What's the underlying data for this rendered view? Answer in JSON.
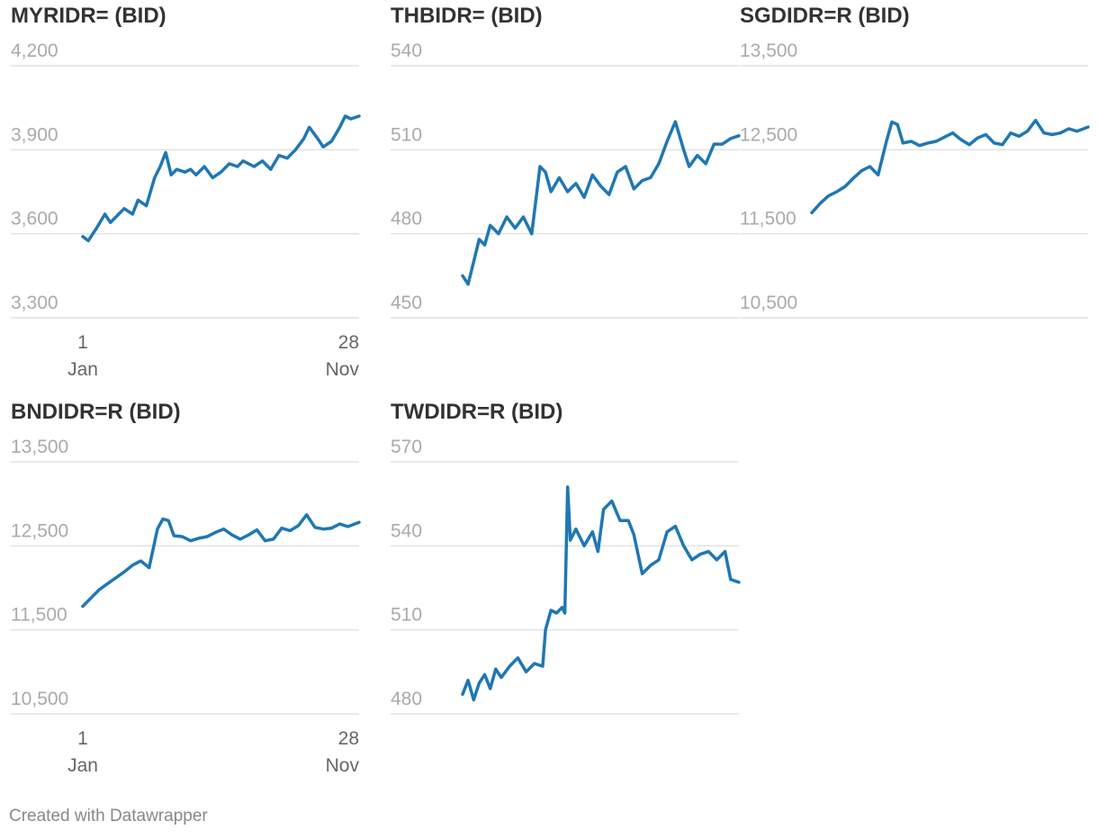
{
  "chart_data": [
    {
      "type": "line",
      "title": "MYRIDR= (BID)",
      "yticks": [
        3300,
        3600,
        3900,
        4200
      ],
      "ytick_labels": [
        "3,300",
        "3,600",
        "3,900",
        "4,200"
      ],
      "ylim": [
        3300,
        4200
      ],
      "x_start_label": [
        "1",
        "Jan"
      ],
      "x_end_label": [
        "28",
        "Nov"
      ],
      "show_x_labels": true,
      "xlim": [
        0,
        1
      ],
      "color": "#1f77b4",
      "series": [
        {
          "x": [
            0,
            0.02,
            0.05,
            0.08,
            0.1,
            0.12,
            0.15,
            0.18,
            0.2,
            0.23,
            0.26,
            0.28,
            0.3,
            0.32,
            0.34,
            0.37,
            0.39,
            0.41,
            0.44,
            0.47,
            0.5,
            0.53,
            0.56,
            0.58,
            0.62,
            0.65,
            0.68,
            0.71,
            0.74,
            0.77,
            0.8,
            0.82,
            0.85,
            0.87,
            0.9,
            0.93,
            0.95,
            0.97,
            1.0
          ],
          "y": [
            3590,
            3575,
            3620,
            3670,
            3640,
            3660,
            3690,
            3670,
            3720,
            3700,
            3800,
            3840,
            3890,
            3810,
            3830,
            3820,
            3830,
            3810,
            3840,
            3800,
            3820,
            3850,
            3840,
            3860,
            3840,
            3860,
            3830,
            3880,
            3870,
            3900,
            3940,
            3980,
            3940,
            3910,
            3930,
            3980,
            4020,
            4010,
            4020
          ]
        }
      ]
    },
    {
      "type": "line",
      "title": "THBIDR= (BID)",
      "yticks": [
        450,
        480,
        510,
        540
      ],
      "ytick_labels": [
        "450",
        "480",
        "510",
        "540"
      ],
      "ylim": [
        450,
        540
      ],
      "show_x_labels": false,
      "xlim": [
        0,
        1
      ],
      "color": "#1f77b4",
      "series": [
        {
          "x": [
            0,
            0.02,
            0.04,
            0.06,
            0.08,
            0.1,
            0.13,
            0.16,
            0.19,
            0.22,
            0.25,
            0.28,
            0.3,
            0.32,
            0.35,
            0.38,
            0.41,
            0.44,
            0.47,
            0.5,
            0.53,
            0.56,
            0.59,
            0.62,
            0.65,
            0.68,
            0.71,
            0.74,
            0.77,
            0.8,
            0.82,
            0.85,
            0.88,
            0.91,
            0.94,
            0.97,
            1.0
          ],
          "y": [
            465,
            462,
            470,
            478,
            476,
            483,
            480,
            486,
            482,
            486,
            480,
            504,
            502,
            495,
            500,
            495,
            498,
            493,
            501,
            497,
            494,
            502,
            504,
            496,
            499,
            500,
            505,
            513,
            520,
            510,
            504,
            508,
            505,
            512,
            512,
            514,
            515
          ]
        }
      ]
    },
    {
      "type": "line",
      "title": "SGDIDR=R (BID)",
      "yticks": [
        10500,
        11500,
        12500,
        13500
      ],
      "ytick_labels": [
        "10,500",
        "11,500",
        "12,500",
        "13,500"
      ],
      "ylim": [
        10500,
        13500
      ],
      "show_x_labels": false,
      "xlim": [
        0,
        1
      ],
      "color": "#1f77b4",
      "series": [
        {
          "x": [
            0,
            0.03,
            0.06,
            0.09,
            0.12,
            0.15,
            0.18,
            0.21,
            0.24,
            0.27,
            0.29,
            0.31,
            0.33,
            0.36,
            0.39,
            0.42,
            0.45,
            0.48,
            0.51,
            0.54,
            0.57,
            0.6,
            0.63,
            0.66,
            0.69,
            0.72,
            0.75,
            0.78,
            0.81,
            0.84,
            0.87,
            0.9,
            0.93,
            0.96,
            1.0
          ],
          "y": [
            11750,
            11860,
            11950,
            12000,
            12060,
            12160,
            12250,
            12300,
            12200,
            12600,
            12830,
            12800,
            12580,
            12600,
            12550,
            12580,
            12600,
            12650,
            12700,
            12620,
            12560,
            12640,
            12680,
            12580,
            12560,
            12700,
            12660,
            12720,
            12850,
            12700,
            12680,
            12700,
            12750,
            12720,
            12770
          ]
        }
      ]
    },
    {
      "type": "line",
      "title": "BNDIDR=R (BID)",
      "yticks": [
        10500,
        11500,
        12500,
        13500
      ],
      "ytick_labels": [
        "10,500",
        "11,500",
        "12,500",
        "13,500"
      ],
      "ylim": [
        10500,
        13500
      ],
      "x_start_label": [
        "1",
        "Jan"
      ],
      "x_end_label": [
        "28",
        "Nov"
      ],
      "show_x_labels": true,
      "xlim": [
        0,
        1
      ],
      "color": "#1f77b4",
      "series": [
        {
          "x": [
            0,
            0.03,
            0.06,
            0.09,
            0.12,
            0.15,
            0.18,
            0.21,
            0.24,
            0.27,
            0.29,
            0.31,
            0.33,
            0.36,
            0.39,
            0.42,
            0.45,
            0.48,
            0.51,
            0.54,
            0.57,
            0.6,
            0.63,
            0.66,
            0.69,
            0.72,
            0.75,
            0.78,
            0.81,
            0.84,
            0.87,
            0.9,
            0.93,
            0.96,
            1.0
          ],
          "y": [
            11780,
            11880,
            11980,
            12050,
            12120,
            12190,
            12270,
            12320,
            12240,
            12700,
            12820,
            12800,
            12620,
            12610,
            12560,
            12590,
            12610,
            12660,
            12700,
            12630,
            12580,
            12630,
            12690,
            12560,
            12580,
            12710,
            12680,
            12740,
            12870,
            12720,
            12700,
            12710,
            12760,
            12730,
            12780
          ]
        }
      ]
    },
    {
      "type": "line",
      "title": "TWDIDR=R (BID)",
      "yticks": [
        480,
        510,
        540,
        570
      ],
      "ytick_labels": [
        "480",
        "510",
        "540",
        "570"
      ],
      "ylim": [
        480,
        570
      ],
      "show_x_labels": false,
      "xlim": [
        0,
        1
      ],
      "color": "#1f77b4",
      "series": [
        {
          "x": [
            0,
            0.02,
            0.04,
            0.06,
            0.08,
            0.1,
            0.12,
            0.14,
            0.17,
            0.2,
            0.23,
            0.26,
            0.29,
            0.3,
            0.32,
            0.34,
            0.36,
            0.37,
            0.38,
            0.39,
            0.41,
            0.44,
            0.47,
            0.49,
            0.51,
            0.54,
            0.57,
            0.6,
            0.62,
            0.65,
            0.68,
            0.71,
            0.74,
            0.77,
            0.8,
            0.83,
            0.86,
            0.89,
            0.92,
            0.95,
            0.97,
            1.0
          ],
          "y": [
            487,
            492,
            485,
            491,
            494,
            489,
            496,
            493,
            497,
            500,
            495,
            498,
            497,
            510,
            517,
            516,
            518,
            516,
            561,
            542,
            546,
            540,
            545,
            538,
            553,
            556,
            549,
            549,
            544,
            530,
            533,
            535,
            545,
            547,
            540,
            535,
            537,
            538,
            535,
            538,
            528,
            527
          ]
        }
      ]
    }
  ],
  "footer": "Created with Datawrapper"
}
